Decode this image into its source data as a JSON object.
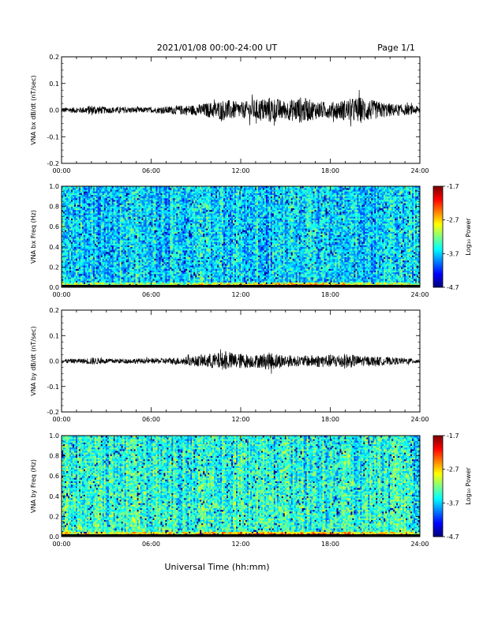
{
  "header": {
    "title": "2021/01/08  00:00-24:00 UT",
    "page": "Page 1/1"
  },
  "xlabel": "Universal Time (hh:mm)",
  "xticks": [
    "00:00",
    "06:00",
    "12:00",
    "18:00",
    "24:00"
  ],
  "colorbar": {
    "label": "Log₁₀ Power",
    "ticks": [
      "-1.7",
      "-2.7",
      "-3.7",
      "-4.7"
    ],
    "range": [
      -4.7,
      -1.7
    ]
  },
  "chart_data": [
    {
      "type": "line",
      "ylabel": "VNA bx dB/dt (nT/sec)",
      "xlim": [
        0,
        24
      ],
      "ylim": [
        -0.2,
        0.2
      ],
      "yticks": [
        "0.2",
        "0.1",
        "0.0",
        "-0.1",
        "-0.2"
      ],
      "envelope": {
        "x_hours": [
          0,
          1.5,
          2,
          3,
          4,
          6,
          8,
          9,
          10,
          11,
          12,
          13,
          14,
          15,
          16,
          17,
          18,
          19,
          20,
          21,
          22,
          23,
          24
        ],
        "amplitude": [
          0.01,
          0.012,
          0.02,
          0.012,
          0.012,
          0.01,
          0.018,
          0.02,
          0.03,
          0.04,
          0.03,
          0.04,
          0.05,
          0.035,
          0.05,
          0.035,
          0.03,
          0.04,
          0.05,
          0.035,
          0.025,
          0.02,
          0.015
        ]
      }
    },
    {
      "type": "heatmap",
      "ylabel": "VNA bx Freq (Hz)",
      "xlim": [
        0,
        24
      ],
      "ylim": [
        0,
        1.0
      ],
      "yticks": [
        "1.0",
        "0.8",
        "0.6",
        "0.4",
        "0.2",
        "0.0"
      ],
      "zlim": [
        -4.7,
        -1.7
      ]
    },
    {
      "type": "line",
      "ylabel": "VNA by dB/dt (nT/sec)",
      "xlim": [
        0,
        24
      ],
      "ylim": [
        -0.2,
        0.2
      ],
      "yticks": [
        "0.2",
        "0.1",
        "0.0",
        "-0.1",
        "-0.2"
      ],
      "envelope": {
        "x_hours": [
          0,
          1.5,
          2,
          3,
          4,
          6,
          8,
          9,
          10,
          11,
          12,
          13,
          14,
          15,
          16,
          17,
          18,
          19,
          20,
          21,
          22,
          23,
          24
        ],
        "amplitude": [
          0.008,
          0.01,
          0.015,
          0.01,
          0.01,
          0.01,
          0.015,
          0.02,
          0.03,
          0.035,
          0.03,
          0.025,
          0.035,
          0.025,
          0.02,
          0.025,
          0.025,
          0.03,
          0.02,
          0.018,
          0.015,
          0.012,
          0.01
        ]
      }
    },
    {
      "type": "heatmap",
      "ylabel": "VNA by Freq (Hz)",
      "xlim": [
        0,
        24
      ],
      "ylim": [
        0,
        1.0
      ],
      "yticks": [
        "1.0",
        "0.8",
        "0.6",
        "0.4",
        "0.2",
        "0.0"
      ],
      "zlim": [
        -4.7,
        -1.7
      ]
    }
  ]
}
